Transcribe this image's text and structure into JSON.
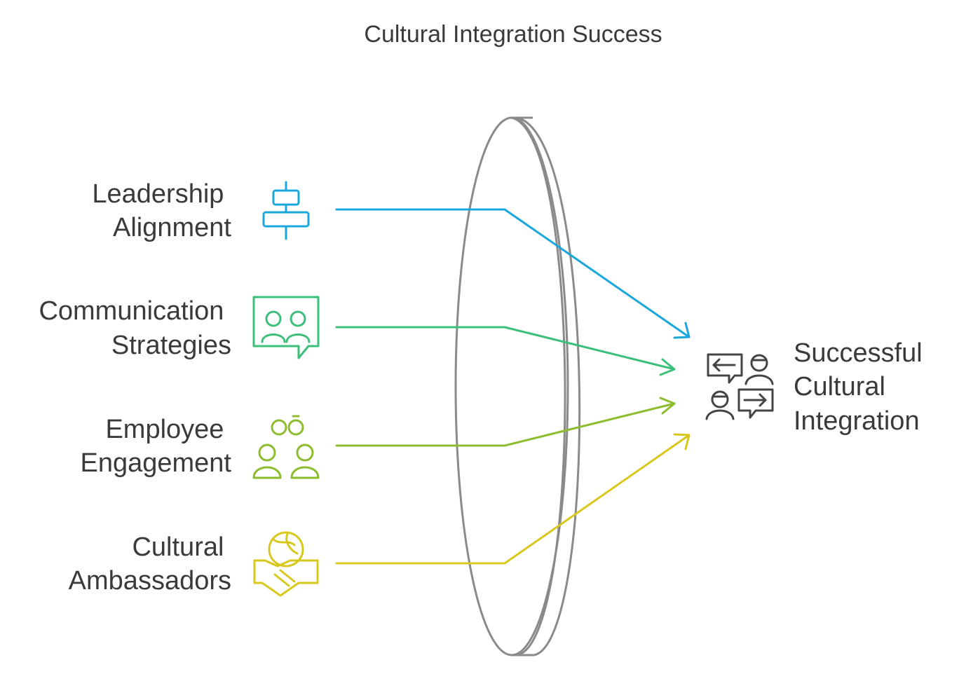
{
  "title": "Cultural Integration Success",
  "inputs": [
    {
      "key": "leadership",
      "lines": [
        "Leadership",
        "Alignment"
      ],
      "icon": "align-center-icon",
      "color": "#1aa7db"
    },
    {
      "key": "communication",
      "lines": [
        "Communication",
        "Strategies"
      ],
      "icon": "chat-people-icon",
      "color": "#3cbf7a"
    },
    {
      "key": "engagement",
      "lines": [
        "Employee",
        "Engagement"
      ],
      "icon": "people-link-icon",
      "color": "#8dbd2e"
    },
    {
      "key": "ambassadors",
      "lines": [
        "Cultural",
        "Ambassadors"
      ],
      "icon": "globe-handshake-icon",
      "color": "#d8c81c"
    }
  ],
  "lens": {
    "name": "lens-icon",
    "color": "#8a8a8a"
  },
  "outcome": {
    "lines": [
      "Successful",
      "Cultural",
      "Integration"
    ],
    "icon": "exchange-conversation-icon",
    "color": "#444444"
  }
}
